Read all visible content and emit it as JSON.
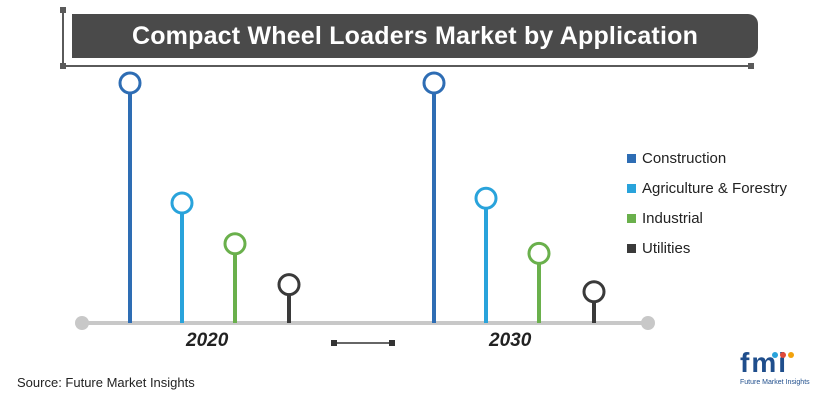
{
  "title": "Compact Wheel Loaders Market by Application",
  "source": "Source: Future Market Insights",
  "logo": {
    "mark": "fmi",
    "tagline": "Future Market Insights"
  },
  "chart_data": {
    "type": "lollipop",
    "categories": [
      "2020",
      "2030"
    ],
    "series": [
      {
        "name": "Construction",
        "color": "#2e6db4",
        "values": [
          100,
          100
        ]
      },
      {
        "name": "Agriculture & Forestry",
        "color": "#29a3db",
        "values": [
          50,
          52
        ]
      },
      {
        "name": "Industrial",
        "color": "#6ab04c",
        "values": [
          33,
          29
        ]
      },
      {
        "name": "Utilities",
        "color": "#3a3a3a",
        "values": [
          16,
          13
        ]
      }
    ],
    "ylim": [
      0,
      100
    ],
    "grid": false,
    "legend_position": "right",
    "axis_color": "#c8c8c8"
  }
}
